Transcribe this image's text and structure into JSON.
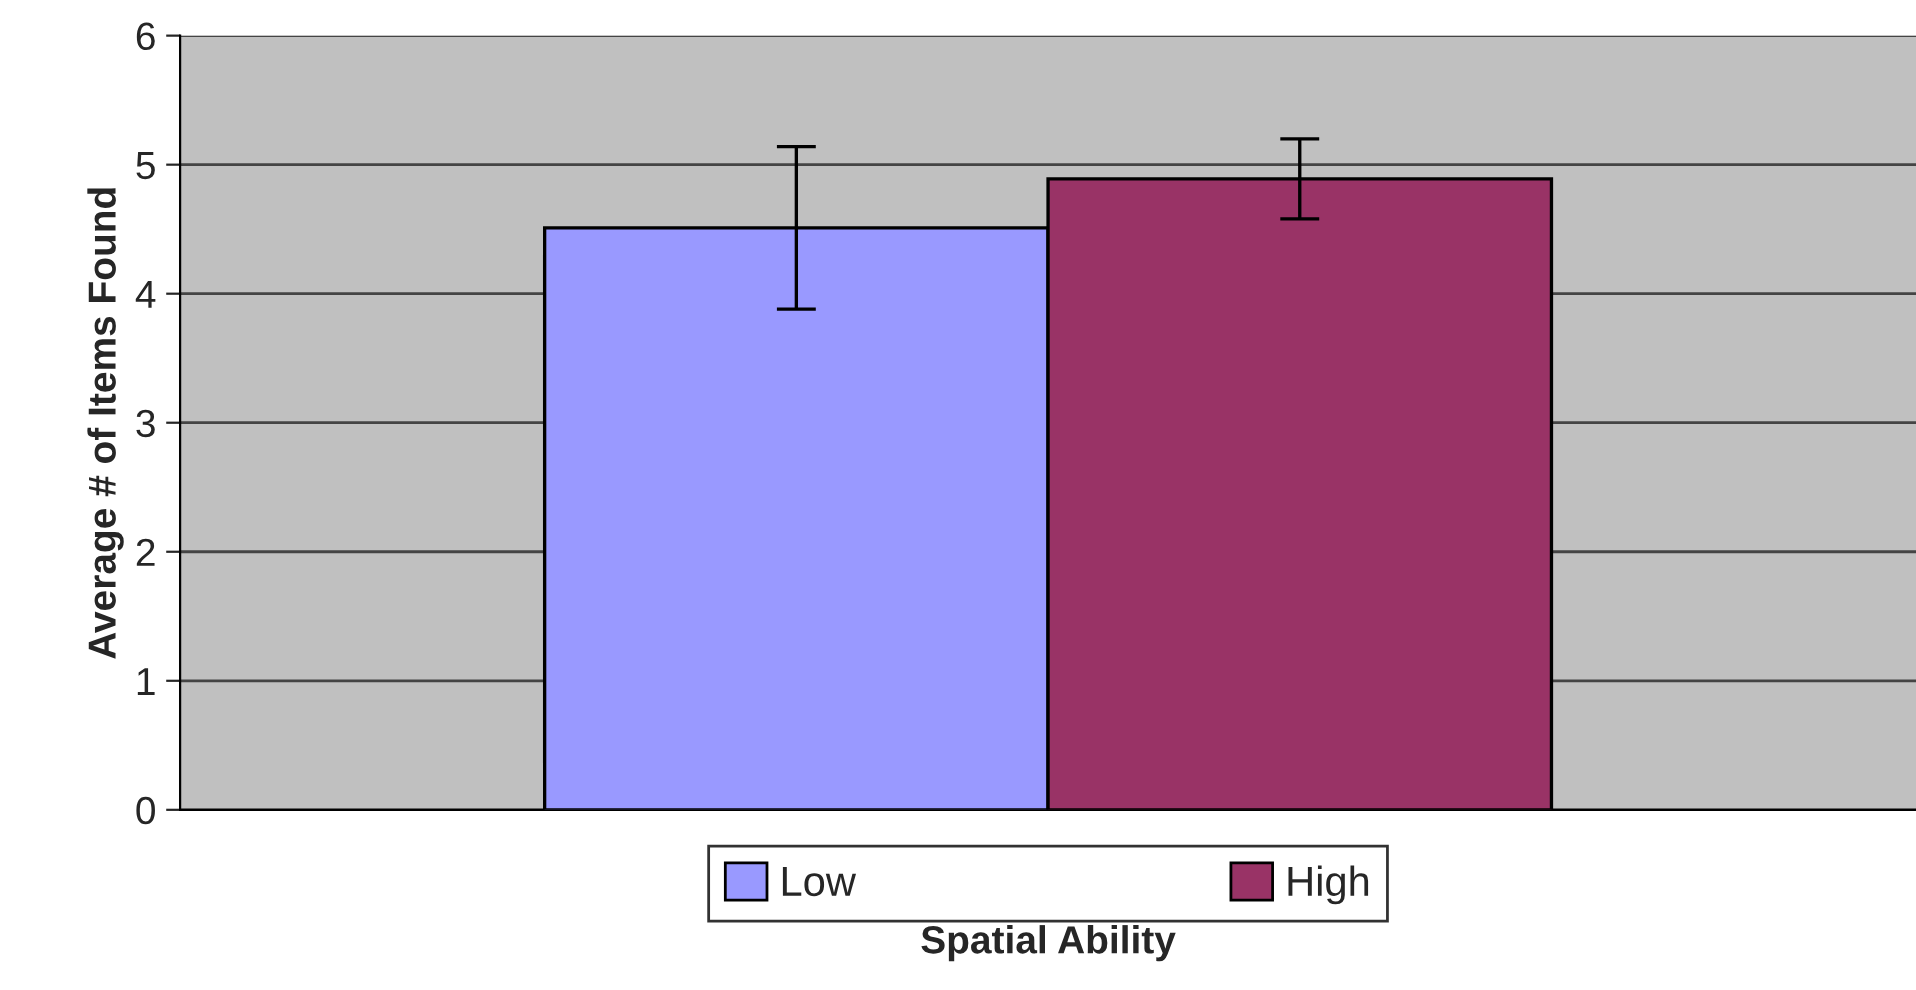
{
  "chart_data": {
    "type": "bar",
    "xlabel": "Spatial Ability",
    "ylabel": "Average # of Items Found",
    "categories": [
      null
    ],
    "series": [
      {
        "name": "Low",
        "color": "#9999ff",
        "values": [
          4.51
        ],
        "errors": [
          0.63
        ]
      },
      {
        "name": "High",
        "color": "#993366",
        "values": [
          4.89
        ],
        "errors": [
          0.31
        ]
      }
    ],
    "ylim": [
      0,
      6
    ],
    "yticks": [
      0,
      1,
      2,
      3,
      4,
      5,
      6
    ],
    "grid": "y",
    "legend": "bottom"
  }
}
